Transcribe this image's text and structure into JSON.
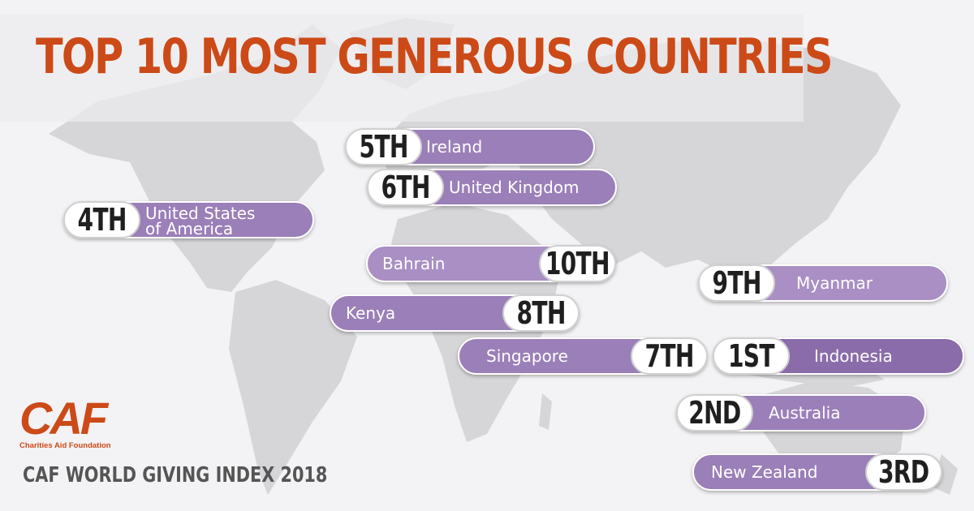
{
  "title": "TOP 10 MOST GENEROUS COUNTRIES",
  "logo": {
    "text": "CAF",
    "subtitle": "Charities Aid Foundation"
  },
  "index_title": "CAF WORLD GIVING INDEX 2018",
  "colors": {
    "title": "#cc4a17",
    "pill": "#9b7fb8",
    "map": "#d6d5d8",
    "background": "#f3f2f4"
  },
  "rankings": [
    {
      "rank": "1ST",
      "country": "Indonesia"
    },
    {
      "rank": "2ND",
      "country": "Australia"
    },
    {
      "rank": "3RD",
      "country": "New Zealand"
    },
    {
      "rank": "4TH",
      "country_line1": "United States",
      "country_line2": "of America"
    },
    {
      "rank": "5TH",
      "country": "Ireland"
    },
    {
      "rank": "6TH",
      "country": "United Kingdom"
    },
    {
      "rank": "7TH",
      "country": "Singapore"
    },
    {
      "rank": "8TH",
      "country": "Kenya"
    },
    {
      "rank": "9TH",
      "country": "Myanmar"
    },
    {
      "rank": "10TH",
      "country": "Bahrain"
    }
  ]
}
